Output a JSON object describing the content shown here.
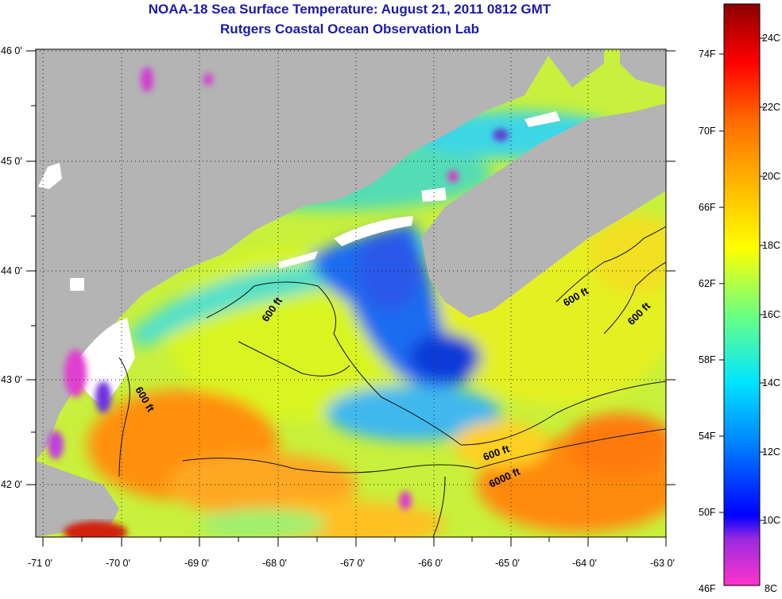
{
  "title": "NOAA-18 Sea Surface Temperature:  August 21, 2011 0812 GMT",
  "subtitle": "Rutgers Coastal Ocean Observation Lab",
  "map": {
    "lon_range": [
      -71,
      -63
    ],
    "lat_range": [
      41.5,
      46
    ],
    "x_tick_labels": [
      "-71 0'",
      "-70 0'",
      "-69 0'",
      "-68 0'",
      "-67 0'",
      "-66 0'",
      "-65 0'",
      "-64 0'",
      "-63 0'"
    ],
    "y_tick_labels": [
      "46 0'",
      "45 0'",
      "44 0'",
      "43 0'",
      "42 0'"
    ],
    "land_color": "#b4b4b4",
    "contour_labels": [
      "600 ft",
      "600 ft",
      "600 ft",
      "600 ft",
      "600 ft",
      "6000 ft"
    ]
  },
  "colorbar": {
    "fahrenheit_labels": [
      "74F",
      "70F",
      "66F",
      "62F",
      "58F",
      "54F",
      "50F",
      "46F"
    ],
    "celsius_labels": [
      "24C",
      "22C",
      "20C",
      "18C",
      "16C",
      "14C",
      "12C",
      "10C",
      "8C"
    ],
    "colors": [
      "#ff33cc",
      "#8a2be2",
      "#0000ff",
      "#0088ff",
      "#00ffff",
      "#66ff66",
      "#ffff00",
      "#ff9900",
      "#ff3300",
      "#8b0000"
    ]
  }
}
